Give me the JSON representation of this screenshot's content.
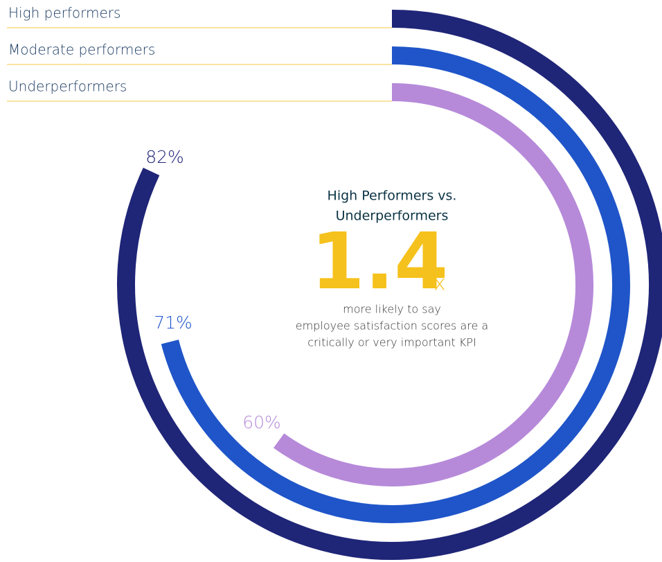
{
  "chart_data": {
    "type": "radial_bar",
    "categories": [
      "High performers",
      "Moderate performers",
      "Underperformers"
    ],
    "values": [
      82,
      71,
      60
    ],
    "value_labels": [
      "82%",
      "71%",
      "60%"
    ],
    "colors": [
      "#1f2577",
      "#1f55c9",
      "#b68ad9"
    ],
    "ylim": [
      0,
      100
    ],
    "annotation": {
      "heading": [
        "High Performers vs.",
        "Underperformers"
      ],
      "figure": "1.4",
      "unit": "x",
      "text": [
        "more likely to say",
        "employee satisfaction scores are a",
        "critically or very important KPI"
      ]
    }
  }
}
